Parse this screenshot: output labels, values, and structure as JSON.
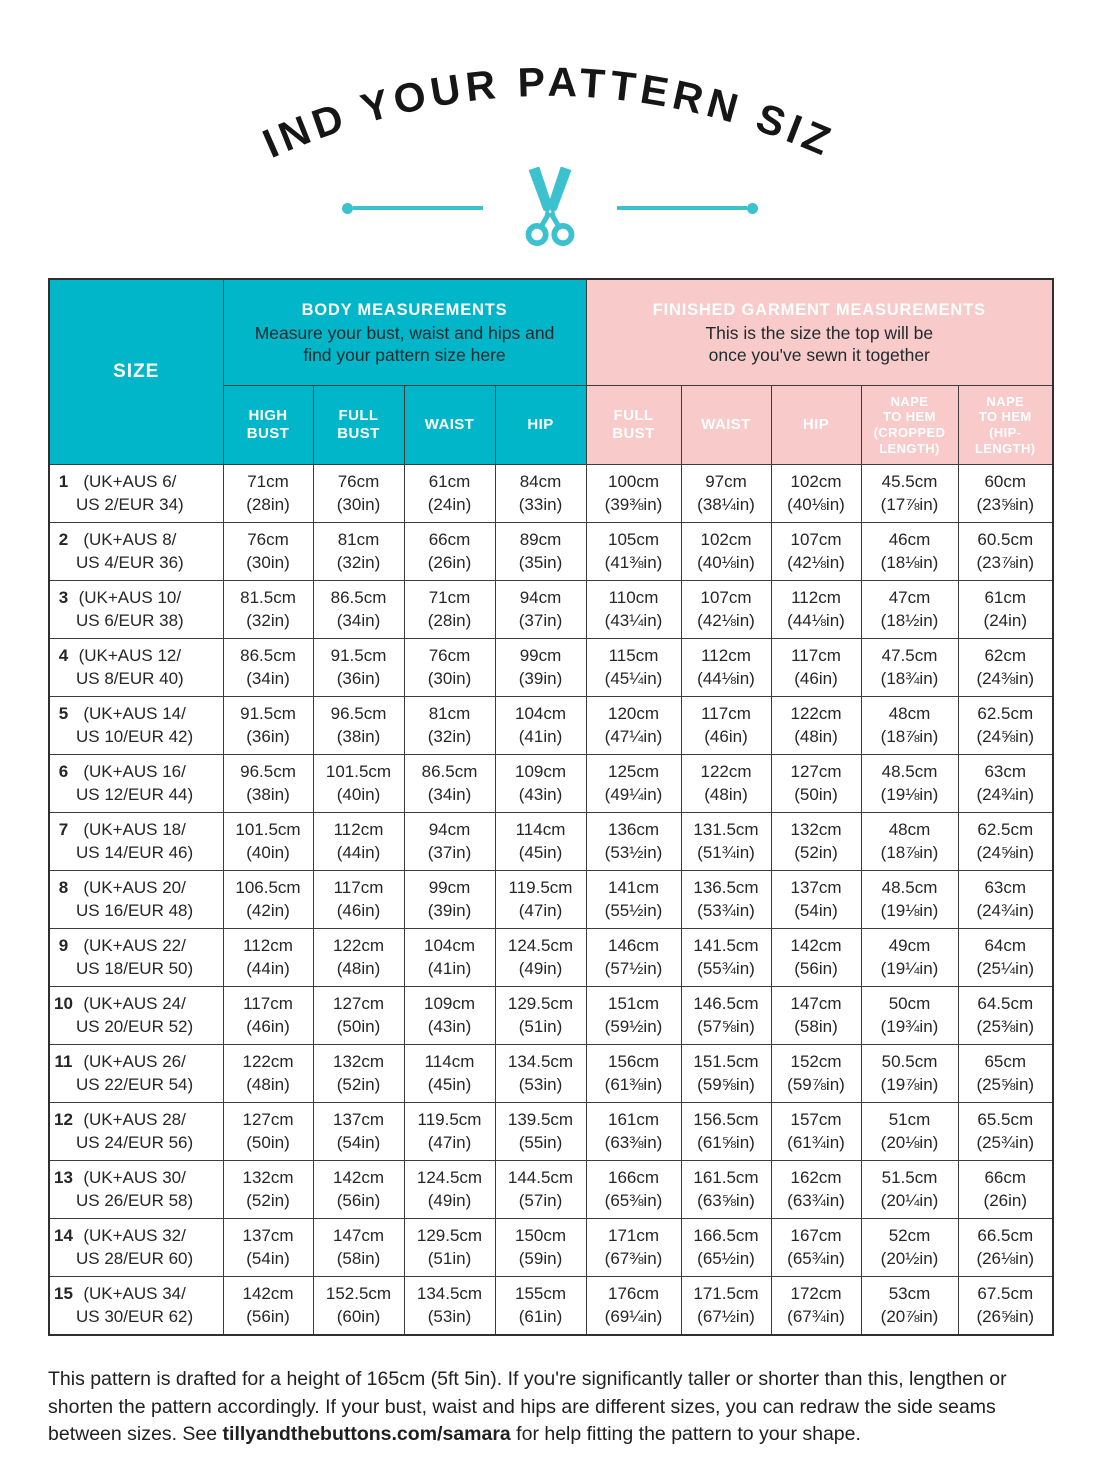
{
  "colors": {
    "teal": "#00b6c8",
    "scissors_teal": "#3cc1ce",
    "pink": "#f9caca",
    "title_ink": "#161616",
    "border": "#3c3c3c"
  },
  "header": {
    "title": "FIND YOUR PATTERN SIZE"
  },
  "table": {
    "size_header": "SIZE",
    "body_group": {
      "title": "BODY MEASUREMENTS",
      "subtitle": "Measure your bust, waist and hips and\nfind your pattern size here",
      "columns": [
        "HIGH\nBUST",
        "FULL\nBUST",
        "WAIST",
        "HIP"
      ]
    },
    "garment_group": {
      "title": "FINISHED GARMENT MEASUREMENTS",
      "subtitle": "This is the size the top will be\nonce you've sewn it together",
      "columns": [
        "FULL\nBUST",
        "WAIST",
        "HIP",
        "NAPE\nTO HEM\n(CROPPED\nLENGTH)",
        "NAPE\nTO HEM\n(HIP-\nLENGTH)"
      ]
    },
    "rows": [
      {
        "num": "1",
        "label": "(UK+AUS 6/\nUS 2/EUR 34)",
        "cells": [
          [
            "71cm",
            "(28in)"
          ],
          [
            "76cm",
            "(30in)"
          ],
          [
            "61cm",
            "(24in)"
          ],
          [
            "84cm",
            "(33in)"
          ],
          [
            "100cm",
            "(39⅜in)"
          ],
          [
            "97cm",
            "(38¼in)"
          ],
          [
            "102cm",
            "(40⅛in)"
          ],
          [
            "45.5cm",
            "(17⅞in)"
          ],
          [
            "60cm",
            "(23⅝in)"
          ]
        ]
      },
      {
        "num": "2",
        "label": "(UK+AUS 8/\nUS 4/EUR 36)",
        "cells": [
          [
            "76cm",
            "(30in)"
          ],
          [
            "81cm",
            "(32in)"
          ],
          [
            "66cm",
            "(26in)"
          ],
          [
            "89cm",
            "(35in)"
          ],
          [
            "105cm",
            "(41⅜in)"
          ],
          [
            "102cm",
            "(40⅛in)"
          ],
          [
            "107cm",
            "(42⅛in)"
          ],
          [
            "46cm",
            "(18⅛in)"
          ],
          [
            "60.5cm",
            "(23⅞in)"
          ]
        ]
      },
      {
        "num": "3",
        "label": "(UK+AUS 10/\nUS 6/EUR 38)",
        "cells": [
          [
            "81.5cm",
            "(32in)"
          ],
          [
            "86.5cm",
            "(34in)"
          ],
          [
            "71cm",
            "(28in)"
          ],
          [
            "94cm",
            "(37in)"
          ],
          [
            "110cm",
            "(43¼in)"
          ],
          [
            "107cm",
            "(42⅛in)"
          ],
          [
            "112cm",
            "(44⅛in)"
          ],
          [
            "47cm",
            "(18½in)"
          ],
          [
            "61cm",
            "(24in)"
          ]
        ]
      },
      {
        "num": "4",
        "label": "(UK+AUS 12/\nUS 8/EUR 40)",
        "cells": [
          [
            "86.5cm",
            "(34in)"
          ],
          [
            "91.5cm",
            "(36in)"
          ],
          [
            "76cm",
            "(30in)"
          ],
          [
            "99cm",
            "(39in)"
          ],
          [
            "115cm",
            "(45¼in)"
          ],
          [
            "112cm",
            "(44⅛in)"
          ],
          [
            "117cm",
            "(46in)"
          ],
          [
            "47.5cm",
            "(18¾in)"
          ],
          [
            "62cm",
            "(24⅜in)"
          ]
        ]
      },
      {
        "num": "5",
        "label": "(UK+AUS 14/\nUS 10/EUR 42)",
        "cells": [
          [
            "91.5cm",
            "(36in)"
          ],
          [
            "96.5cm",
            "(38in)"
          ],
          [
            "81cm",
            "(32in)"
          ],
          [
            "104cm",
            "(41in)"
          ],
          [
            "120cm",
            "(47¼in)"
          ],
          [
            "117cm",
            "(46in)"
          ],
          [
            "122cm",
            "(48in)"
          ],
          [
            "48cm",
            "(18⅞in)"
          ],
          [
            "62.5cm",
            "(24⅝in)"
          ]
        ]
      },
      {
        "num": "6",
        "label": "(UK+AUS 16/\nUS 12/EUR 44)",
        "cells": [
          [
            "96.5cm",
            "(38in)"
          ],
          [
            "101.5cm",
            "(40in)"
          ],
          [
            "86.5cm",
            "(34in)"
          ],
          [
            "109cm",
            "(43in)"
          ],
          [
            "125cm",
            "(49¼in)"
          ],
          [
            "122cm",
            "(48in)"
          ],
          [
            "127cm",
            "(50in)"
          ],
          [
            "48.5cm",
            "(19⅛in)"
          ],
          [
            "63cm",
            "(24¾in)"
          ]
        ]
      },
      {
        "num": "7",
        "label": "(UK+AUS 18/\nUS 14/EUR 46)",
        "cells": [
          [
            "101.5cm",
            "(40in)"
          ],
          [
            "112cm",
            "(44in)"
          ],
          [
            "94cm",
            "(37in)"
          ],
          [
            "114cm",
            "(45in)"
          ],
          [
            "136cm",
            "(53½in)"
          ],
          [
            "131.5cm",
            "(51¾in)"
          ],
          [
            "132cm",
            "(52in)"
          ],
          [
            "48cm",
            "(18⅞in)"
          ],
          [
            "62.5cm",
            "(24⅝in)"
          ]
        ]
      },
      {
        "num": "8",
        "label": "(UK+AUS 20/\nUS 16/EUR 48)",
        "cells": [
          [
            "106.5cm",
            "(42in)"
          ],
          [
            "117cm",
            "(46in)"
          ],
          [
            "99cm",
            "(39in)"
          ],
          [
            "119.5cm",
            "(47in)"
          ],
          [
            "141cm",
            "(55½in)"
          ],
          [
            "136.5cm",
            "(53¾in)"
          ],
          [
            "137cm",
            "(54in)"
          ],
          [
            "48.5cm",
            "(19⅛in)"
          ],
          [
            "63cm",
            "(24¾in)"
          ]
        ]
      },
      {
        "num": "9",
        "label": "(UK+AUS 22/\nUS 18/EUR 50)",
        "cells": [
          [
            "112cm",
            "(44in)"
          ],
          [
            "122cm",
            "(48in)"
          ],
          [
            "104cm",
            "(41in)"
          ],
          [
            "124.5cm",
            "(49in)"
          ],
          [
            "146cm",
            "(57½in)"
          ],
          [
            "141.5cm",
            "(55¾in)"
          ],
          [
            "142cm",
            "(56in)"
          ],
          [
            "49cm",
            "(19¼in)"
          ],
          [
            "64cm",
            "(25¼in)"
          ]
        ]
      },
      {
        "num": "10",
        "label": "(UK+AUS 24/\nUS 20/EUR 52)",
        "cells": [
          [
            "117cm",
            "(46in)"
          ],
          [
            "127cm",
            "(50in)"
          ],
          [
            "109cm",
            "(43in)"
          ],
          [
            "129.5cm",
            "(51in)"
          ],
          [
            "151cm",
            "(59½in)"
          ],
          [
            "146.5cm",
            "(57⅝in)"
          ],
          [
            "147cm",
            "(58in)"
          ],
          [
            "50cm",
            "(19¾in)"
          ],
          [
            "64.5cm",
            "(25⅜in)"
          ]
        ]
      },
      {
        "num": "11",
        "label": "(UK+AUS 26/\nUS 22/EUR 54)",
        "cells": [
          [
            "122cm",
            "(48in)"
          ],
          [
            "132cm",
            "(52in)"
          ],
          [
            "114cm",
            "(45in)"
          ],
          [
            "134.5cm",
            "(53in)"
          ],
          [
            "156cm",
            "(61⅜in)"
          ],
          [
            "151.5cm",
            "(59⅝in)"
          ],
          [
            "152cm",
            "(59⅞in)"
          ],
          [
            "50.5cm",
            "(19⅞in)"
          ],
          [
            "65cm",
            "(25⅝in)"
          ]
        ]
      },
      {
        "num": "12",
        "label": "(UK+AUS 28/\nUS 24/EUR 56)",
        "cells": [
          [
            "127cm",
            "(50in)"
          ],
          [
            "137cm",
            "(54in)"
          ],
          [
            "119.5cm",
            "(47in)"
          ],
          [
            "139.5cm",
            "(55in)"
          ],
          [
            "161cm",
            "(63⅜in)"
          ],
          [
            "156.5cm",
            "(61⅝in)"
          ],
          [
            "157cm",
            "(61¾in)"
          ],
          [
            "51cm",
            "(20⅛in)"
          ],
          [
            "65.5cm",
            "(25¾in)"
          ]
        ]
      },
      {
        "num": "13",
        "label": "(UK+AUS 30/\nUS 26/EUR 58)",
        "cells": [
          [
            "132cm",
            "(52in)"
          ],
          [
            "142cm",
            "(56in)"
          ],
          [
            "124.5cm",
            "(49in)"
          ],
          [
            "144.5cm",
            "(57in)"
          ],
          [
            "166cm",
            "(65⅜in)"
          ],
          [
            "161.5cm",
            "(63⅝in)"
          ],
          [
            "162cm",
            "(63¾in)"
          ],
          [
            "51.5cm",
            "(20¼in)"
          ],
          [
            "66cm",
            "(26in)"
          ]
        ]
      },
      {
        "num": "14",
        "label": "(UK+AUS 32/\nUS 28/EUR 60)",
        "cells": [
          [
            "137cm",
            "(54in)"
          ],
          [
            "147cm",
            "(58in)"
          ],
          [
            "129.5cm",
            "(51in)"
          ],
          [
            "150cm",
            "(59in)"
          ],
          [
            "171cm",
            "(67⅜in)"
          ],
          [
            "166.5cm",
            "(65½in)"
          ],
          [
            "167cm",
            "(65¾in)"
          ],
          [
            "52cm",
            "(20½in)"
          ],
          [
            "66.5cm",
            "(26⅛in)"
          ]
        ]
      },
      {
        "num": "15",
        "label": "(UK+AUS 34/\nUS 30/EUR 62)",
        "cells": [
          [
            "142cm",
            "(56in)"
          ],
          [
            "152.5cm",
            "(60in)"
          ],
          [
            "134.5cm",
            "(53in)"
          ],
          [
            "155cm",
            "(61in)"
          ],
          [
            "176cm",
            "(69¼in)"
          ],
          [
            "171.5cm",
            "(67½in)"
          ],
          [
            "172cm",
            "(67¾in)"
          ],
          [
            "53cm",
            "(20⅞in)"
          ],
          [
            "67.5cm",
            "(26⅝in)"
          ]
        ]
      }
    ]
  },
  "footer": {
    "text_before": "This pattern is drafted for a height of 165cm (5ft 5in). If you're significantly taller or shorter than this, lengthen or shorten the pattern accordingly. If your bust, waist and hips are different sizes, you can redraw the side seams between sizes. See ",
    "link": "tillyandthebuttons.com/samara",
    "text_after": " for help fitting the pattern to your shape."
  }
}
